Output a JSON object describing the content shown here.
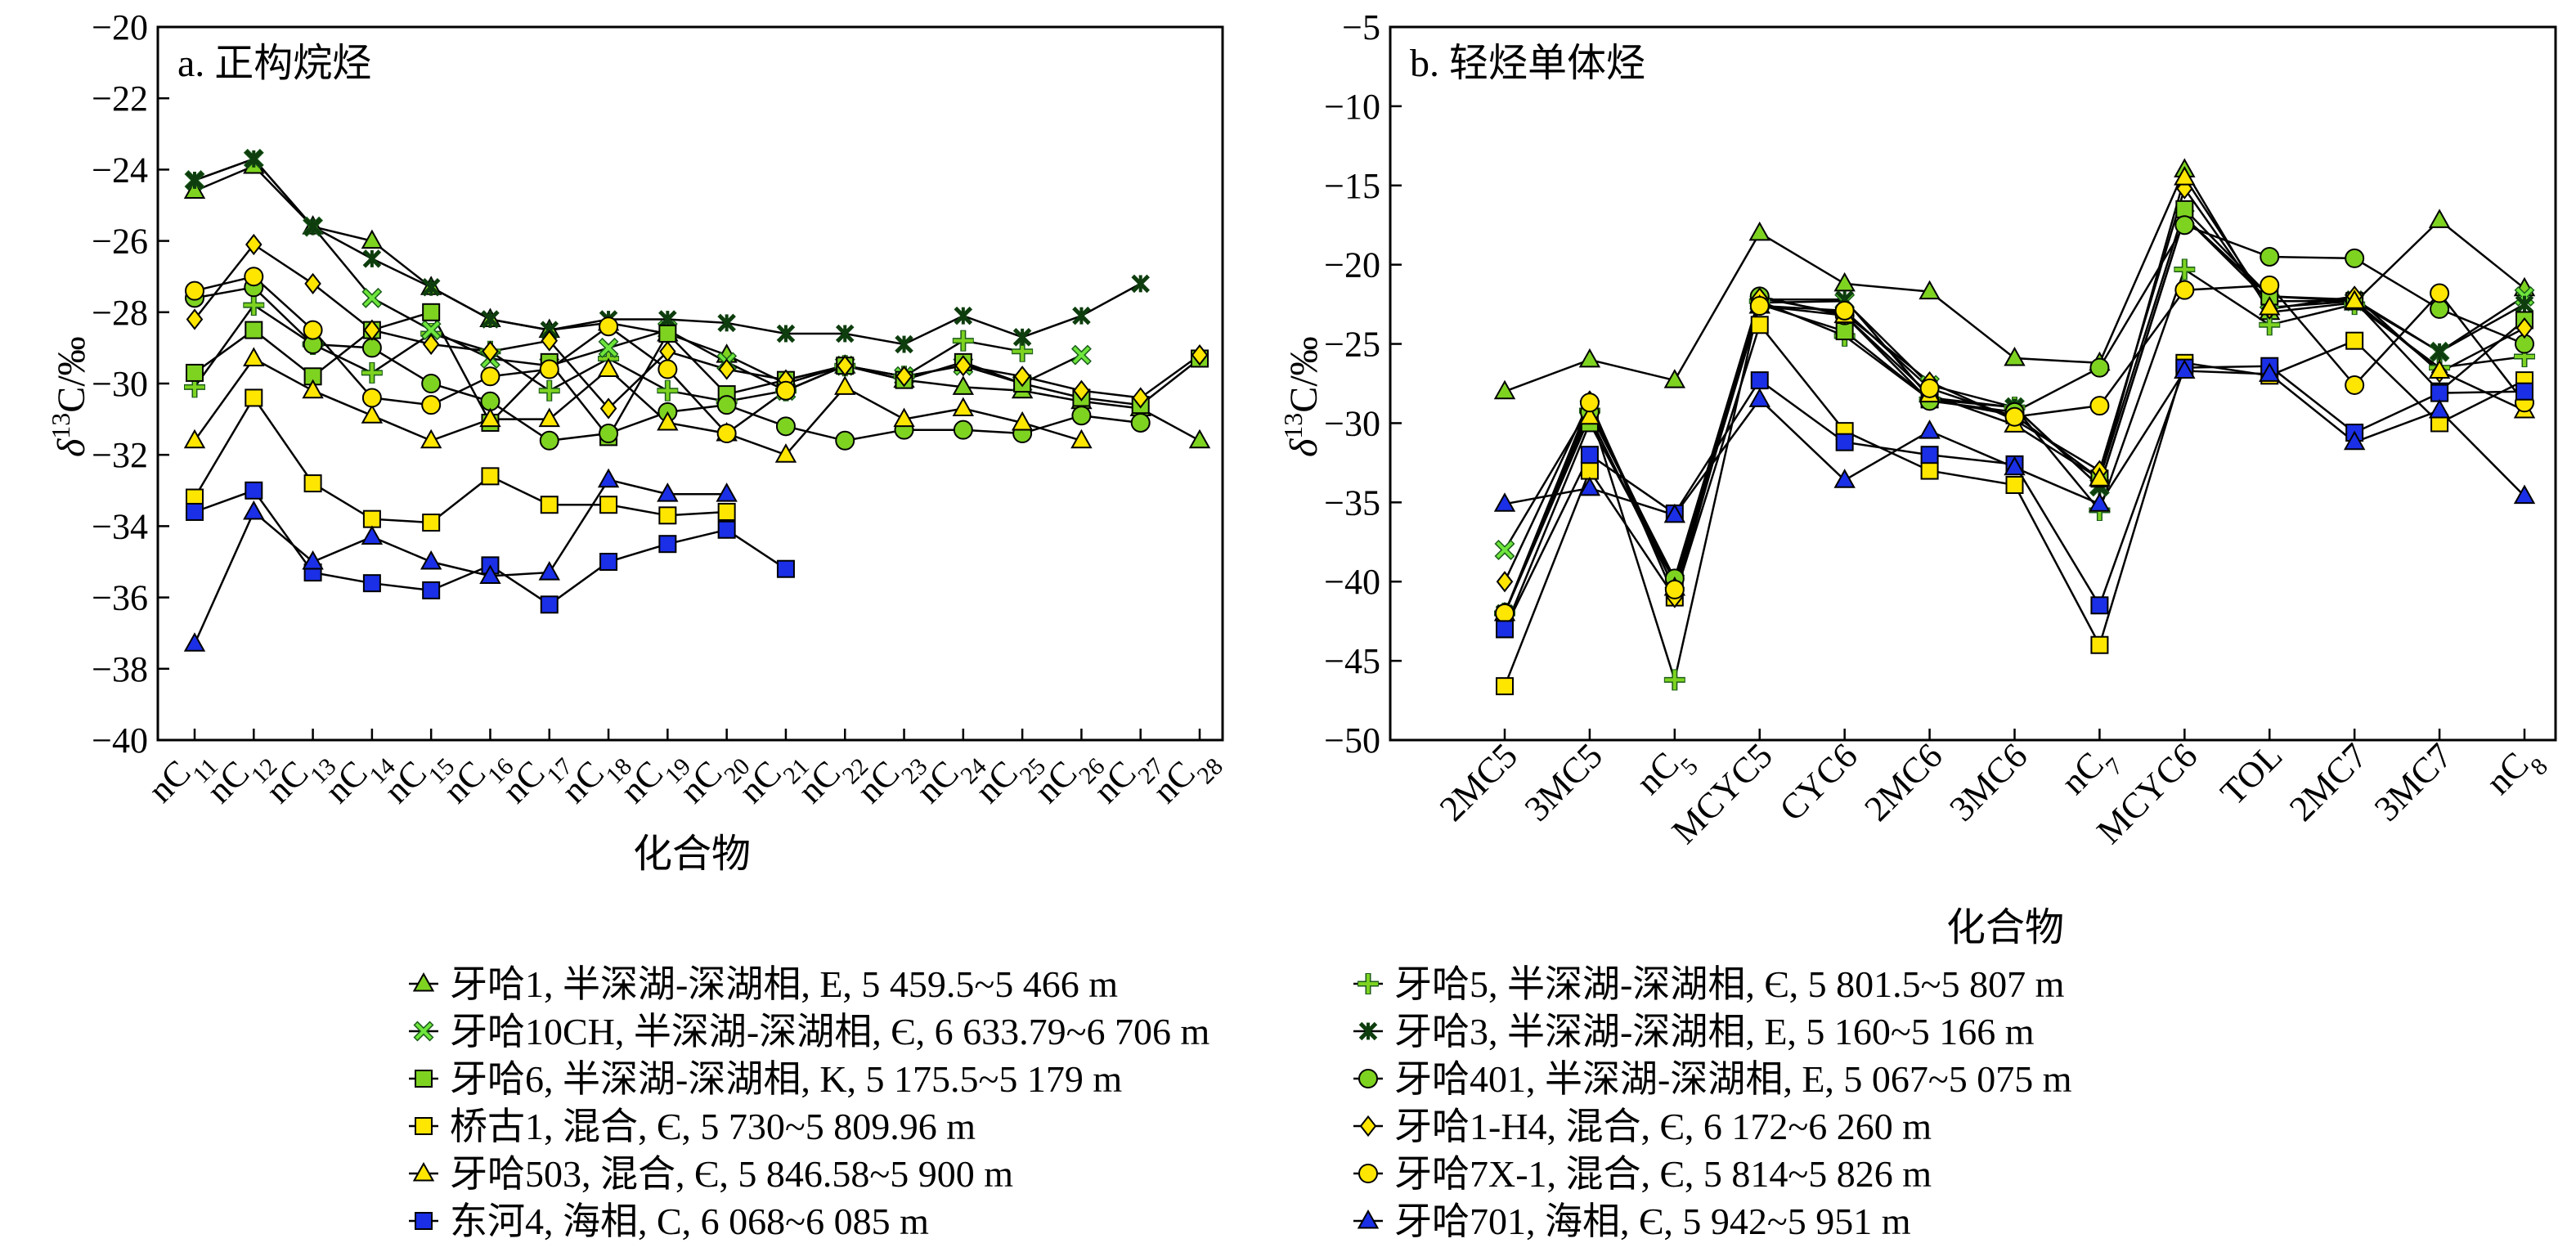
{
  "chart_data": [
    {
      "type": "line",
      "panel": "a",
      "title": "a. 正构烷烃",
      "xlabel": "化合物",
      "ylabel_italic": "δ",
      "ylabel_sup": "13",
      "ylabel_rest": "C/‰",
      "ylim": [
        -40,
        -20
      ],
      "yticks": [
        "−20",
        "−22",
        "−24",
        "−26",
        "−28",
        "−30",
        "−32",
        "−34",
        "−36",
        "−38",
        "−40"
      ],
      "categories": [
        {
          "base": "nC",
          "sub": "11"
        },
        {
          "base": "nC",
          "sub": "12"
        },
        {
          "base": "nC",
          "sub": "13"
        },
        {
          "base": "nC",
          "sub": "14"
        },
        {
          "base": "nC",
          "sub": "15"
        },
        {
          "base": "nC",
          "sub": "16"
        },
        {
          "base": "nC",
          "sub": "17"
        },
        {
          "base": "nC",
          "sub": "18"
        },
        {
          "base": "nC",
          "sub": "19"
        },
        {
          "base": "nC",
          "sub": "20"
        },
        {
          "base": "nC",
          "sub": "21"
        },
        {
          "base": "nC",
          "sub": "22"
        },
        {
          "base": "nC",
          "sub": "23"
        },
        {
          "base": "nC",
          "sub": "24"
        },
        {
          "base": "nC",
          "sub": "25"
        },
        {
          "base": "nC",
          "sub": "26"
        },
        {
          "base": "nC",
          "sub": "27"
        },
        {
          "base": "nC",
          "sub": "28"
        }
      ],
      "series": [
        {
          "legend_index": 0,
          "values": [
            -24.6,
            -23.9,
            -25.6,
            -26.0,
            -27.3,
            -28.2,
            -28.5,
            -28.3,
            -28.6,
            -29.2,
            -30.0,
            -29.5,
            -29.9,
            -30.1,
            -30.2,
            -30.5,
            -30.7,
            -31.6
          ]
        },
        {
          "legend_index": 6,
          "values": [
            -30.1,
            -27.8,
            -28.9,
            -29.7,
            -28.6,
            -29.1,
            -30.2,
            -29.3,
            -30.2,
            -30.5,
            -30.2,
            -29.5,
            -29.8,
            -28.8,
            -29.1,
            null,
            null,
            null
          ]
        },
        {
          "legend_index": 1,
          "values": [
            -24.3,
            -23.7,
            -25.6,
            -27.6,
            -28.5,
            -29.3,
            -29.5,
            -29.0,
            -28.5,
            -29.4,
            -30.2,
            -29.5,
            -29.8,
            -29.5,
            -30.0,
            -29.2,
            null,
            null
          ]
        },
        {
          "legend_index": 7,
          "values": [
            -24.3,
            -23.7,
            -25.6,
            -26.5,
            -27.3,
            -28.2,
            -28.5,
            -28.2,
            -28.2,
            -28.3,
            -28.6,
            -28.6,
            -28.9,
            -28.1,
            -28.7,
            -28.1,
            -27.2,
            null
          ]
        },
        {
          "legend_index": 2,
          "values": [
            -29.7,
            -28.5,
            -29.8,
            -28.5,
            -28.0,
            -31.1,
            -29.4,
            -31.5,
            -28.6,
            -30.3,
            -29.9,
            -29.5,
            -29.9,
            -29.4,
            -30.0,
            -30.4,
            -30.6,
            -29.3
          ]
        },
        {
          "legend_index": 8,
          "values": [
            -27.6,
            -27.3,
            -28.9,
            -29.0,
            -30.0,
            -30.5,
            -31.6,
            -31.4,
            -30.8,
            -30.6,
            -31.2,
            -31.6,
            -31.3,
            -31.3,
            -31.4,
            -30.9,
            -31.1,
            null
          ]
        },
        {
          "legend_index": 3,
          "values": [
            -33.2,
            -30.4,
            -32.8,
            -33.8,
            -33.9,
            -32.6,
            -33.4,
            -33.4,
            -33.7,
            -33.6,
            null,
            null,
            null,
            null,
            null,
            null,
            null,
            null
          ]
        },
        {
          "legend_index": 9,
          "values": [
            -28.2,
            -26.1,
            -27.2,
            -28.5,
            -28.9,
            -29.1,
            -28.8,
            -30.7,
            -29.1,
            -29.6,
            -29.9,
            -29.5,
            -29.8,
            -29.5,
            -29.8,
            -30.2,
            -30.4,
            -29.2
          ]
        },
        {
          "legend_index": 4,
          "values": [
            -31.6,
            -29.3,
            -30.2,
            -30.9,
            -31.6,
            -31.0,
            -31.0,
            -29.6,
            -31.1,
            -31.4,
            -32.0,
            -30.1,
            -31.0,
            -30.7,
            -31.1,
            -31.6,
            null,
            null
          ]
        },
        {
          "legend_index": 10,
          "values": [
            -27.4,
            -27.0,
            -28.5,
            -30.4,
            -30.6,
            -29.8,
            -29.6,
            -28.4,
            -29.6,
            -31.4,
            -30.2,
            null,
            null,
            null,
            null,
            null,
            null,
            null
          ]
        },
        {
          "legend_index": 5,
          "values": [
            -33.6,
            -33.0,
            -35.3,
            -35.6,
            -35.8,
            -35.1,
            -36.2,
            -35.0,
            -34.5,
            -34.1,
            -35.2,
            null,
            null,
            null,
            null,
            null,
            null,
            null
          ]
        },
        {
          "legend_index": 11,
          "values": [
            -37.3,
            -33.6,
            -35.0,
            -34.3,
            -35.0,
            -35.4,
            -35.3,
            -32.7,
            -33.1,
            -33.1,
            null,
            null,
            null,
            null,
            null,
            null,
            null,
            null
          ]
        }
      ]
    },
    {
      "type": "line",
      "panel": "b",
      "title": "b. 轻烃单体烃",
      "xlabel": "化合物",
      "ylabel_italic": "δ",
      "ylabel_sup": "13",
      "ylabel_rest": "C/‰",
      "ylim": [
        -50,
        -5
      ],
      "yticks": [
        "−5",
        "−10",
        "−15",
        "−20",
        "−25",
        "−30",
        "−35",
        "−40",
        "−45",
        "−50"
      ],
      "categories": [
        {
          "base": "2MC5",
          "sub": ""
        },
        {
          "base": "3MC5",
          "sub": ""
        },
        {
          "base": "nC",
          "sub": "5"
        },
        {
          "base": "MCYC5",
          "sub": ""
        },
        {
          "base": "CYC6",
          "sub": ""
        },
        {
          "base": "2MC6",
          "sub": ""
        },
        {
          "base": "3MC6",
          "sub": ""
        },
        {
          "base": "nC",
          "sub": "7"
        },
        {
          "base": "MCYC6",
          "sub": ""
        },
        {
          "base": "TOL",
          "sub": ""
        },
        {
          "base": "2MC7",
          "sub": ""
        },
        {
          "base": "3MC7",
          "sub": ""
        },
        {
          "base": "nC",
          "sub": "8"
        }
      ],
      "series": [
        {
          "legend_index": 0,
          "values": [
            -28.0,
            -26.0,
            -27.3,
            -18.0,
            -21.2,
            -21.7,
            -25.9,
            -26.2,
            -14.0,
            -23.0,
            -22.4,
            -17.2,
            -21.5
          ]
        },
        {
          "legend_index": 6,
          "values": [
            -42.0,
            -29.2,
            -46.2,
            -22.3,
            -24.5,
            -28.5,
            -29.0,
            -35.5,
            -20.3,
            -23.8,
            -22.5,
            -26.5,
            -25.8
          ]
        },
        {
          "legend_index": 1,
          "values": [
            -38.0,
            -29.0,
            -40.0,
            -22.4,
            -22.3,
            -27.6,
            -29.0,
            -34.0,
            -17.0,
            -22.3,
            -22.3,
            -25.5,
            -22.0
          ]
        },
        {
          "legend_index": 7,
          "values": [
            -42.0,
            -29.0,
            -40.0,
            -22.2,
            -22.2,
            -28.4,
            -29.0,
            -34.0,
            -17.0,
            -22.0,
            -22.2,
            -25.5,
            -22.5
          ]
        },
        {
          "legend_index": 2,
          "values": [
            -43.0,
            -30.0,
            -40.0,
            -22.5,
            -24.2,
            -28.5,
            -29.5,
            -33.5,
            -16.5,
            -22.0,
            -22.3,
            -28.0,
            -23.5
          ]
        },
        {
          "legend_index": 8,
          "values": [
            -42.0,
            -29.3,
            -39.8,
            -22.0,
            -23.2,
            -28.6,
            -29.3,
            -26.5,
            -17.5,
            -19.5,
            -19.6,
            -22.8,
            -25.0
          ]
        },
        {
          "legend_index": 3,
          "values": [
            -46.6,
            -33.0,
            -41.0,
            -23.8,
            -30.5,
            -33.0,
            -33.9,
            -44.0,
            -26.2,
            -27.0,
            -24.8,
            -30.0,
            -27.3
          ]
        },
        {
          "legend_index": 9,
          "values": [
            -40.0,
            -28.6,
            -41.0,
            -22.1,
            -23.1,
            -27.4,
            -29.8,
            -33.0,
            -15.2,
            -22.8,
            -22.0,
            -26.8,
            -24.0
          ]
        },
        {
          "legend_index": 4,
          "values": [
            -42.0,
            -29.6,
            -40.4,
            -22.6,
            -23.2,
            -28.2,
            -30.1,
            -33.5,
            -14.5,
            -22.7,
            -22.3,
            -26.7,
            -29.2
          ]
        },
        {
          "legend_index": 10,
          "values": [
            -42.0,
            -28.7,
            -40.5,
            -22.6,
            -22.9,
            -27.8,
            -29.6,
            -28.9,
            -21.6,
            -21.3,
            -27.6,
            -21.8,
            -28.7
          ]
        },
        {
          "legend_index": 5,
          "values": [
            -43.0,
            -32.0,
            -35.7,
            -27.3,
            -31.2,
            -32.0,
            -32.6,
            -41.5,
            -26.5,
            -26.4,
            -30.6,
            -28.1,
            -28.0
          ]
        },
        {
          "legend_index": 11,
          "values": [
            -35.1,
            -34.1,
            -35.8,
            -28.5,
            -33.6,
            -30.5,
            -32.8,
            -35.1,
            -26.7,
            -26.9,
            -31.2,
            -29.2,
            -34.6
          ]
        }
      ]
    }
  ],
  "legend": [
    {
      "label": "牙哈1, 半深湖-深湖相, E, 5 459.5~5 466 m",
      "marker": "triangle",
      "fill": "#7ed321",
      "line": "#1a5c1a"
    },
    {
      "label": "牙哈10CH, 半深湖-深湖相, Є, 6 633.79~6 706 m",
      "marker": "x",
      "fill": "#6ee63c",
      "line": "#1a5c1a"
    },
    {
      "label": "牙哈6, 半深湖-深湖相, K, 5 175.5~5 179 m",
      "marker": "square",
      "fill": "#7ed321",
      "line": "#1a5c1a"
    },
    {
      "label": "桥古1, 混合, Є, 5 730~5 809.96 m",
      "marker": "square",
      "fill": "#ffe600",
      "line": "#6b5a00"
    },
    {
      "label": "牙哈503, 混合, Є, 5 846.58~5 900 m",
      "marker": "triangle",
      "fill": "#ffe600",
      "line": "#6b5a00"
    },
    {
      "label": "东河4, 海相, C, 6 068~6 085 m",
      "marker": "square",
      "fill": "#1a2fe6",
      "line": "#000000"
    },
    {
      "label": "牙哈5, 半深湖-深湖相, Є, 5 801.5~5 807 m",
      "marker": "plus",
      "fill": "#7ed321",
      "line": "#1a5c1a"
    },
    {
      "label": "牙哈3, 半深湖-深湖相, E, 5 160~5 166 m",
      "marker": "star",
      "fill": "#1a5c1a",
      "line": "#1a5c1a"
    },
    {
      "label": "牙哈401, 半深湖-深湖相, E, 5 067~5 075 m",
      "marker": "circle",
      "fill": "#7ed321",
      "line": "#1a5c1a"
    },
    {
      "label": "牙哈1-H4, 混合, Є, 6 172~6 260 m",
      "marker": "diamond",
      "fill": "#ffe600",
      "line": "#6b5a00"
    },
    {
      "label": "牙哈7X-1, 混合, Є, 5 814~5 826 m",
      "marker": "circle",
      "fill": "#ffe600",
      "line": "#6b5a00"
    },
    {
      "label": "牙哈701, 海相, Є, 5 942~5 951 m",
      "marker": "triangle",
      "fill": "#1a2fe6",
      "line": "#000000"
    }
  ]
}
